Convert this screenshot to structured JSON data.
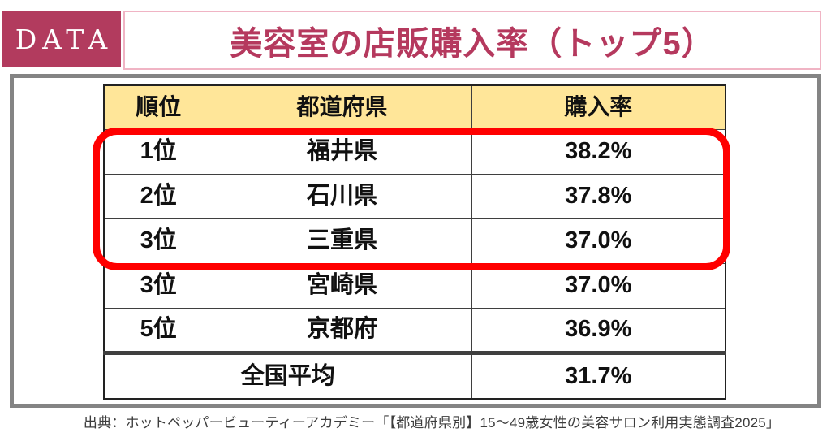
{
  "badge": {
    "label": "DATA"
  },
  "header": {
    "title": "美容室の店販購入率（トップ5）"
  },
  "table": {
    "headers": [
      "順位",
      "都道府県",
      "購入率"
    ],
    "rows": [
      {
        "rank": "1位",
        "prefecture": "福井県",
        "rate": "38.2%"
      },
      {
        "rank": "2位",
        "prefecture": "石川県",
        "rate": "37.8%"
      },
      {
        "rank": "3位",
        "prefecture": "三重県",
        "rate": "37.0%"
      },
      {
        "rank": "3位",
        "prefecture": "宮崎県",
        "rate": "37.0%"
      },
      {
        "rank": "5位",
        "prefecture": "京都府",
        "rate": "36.9%"
      }
    ],
    "summary": {
      "label": "全国平均",
      "rate": "31.7%"
    }
  },
  "caption": "出典：ホットペッパービューティーアカデミー「【都道府県別】15～49歳女性の美容サロン利用実態調査2025」",
  "colors": {
    "badge_background": "#b23b5e",
    "title_text": "#b5395e",
    "title_border": "#f0b4c4",
    "panel_border": "#848484",
    "header_cell_background": "#ffe699",
    "highlight_frame": "#ff0000",
    "table_border": "#3f3f3f",
    "caption_text": "#3d3d3d"
  },
  "chart_data": {
    "type": "table",
    "title": "美容室の店販購入率（トップ5）",
    "columns": [
      "順位",
      "都道府県",
      "購入率"
    ],
    "rows": [
      [
        "1位",
        "福井県",
        "38.2%"
      ],
      [
        "2位",
        "石川県",
        "37.8%"
      ],
      [
        "3位",
        "三重県",
        "37.0%"
      ],
      [
        "3位",
        "宮崎県",
        "37.0%"
      ],
      [
        "5位",
        "京都府",
        "36.9%"
      ],
      [
        "全国平均",
        "",
        "31.7%"
      ]
    ],
    "values_pct": [
      38.2,
      37.8,
      37.0,
      37.0,
      36.9
    ],
    "national_average_pct": 31.7,
    "highlighted_row_indices": [
      0,
      1,
      2
    ],
    "source": "ホットペッパービューティーアカデミー「【都道府県別】15～49歳女性の美容サロン利用実態調査2025」"
  }
}
